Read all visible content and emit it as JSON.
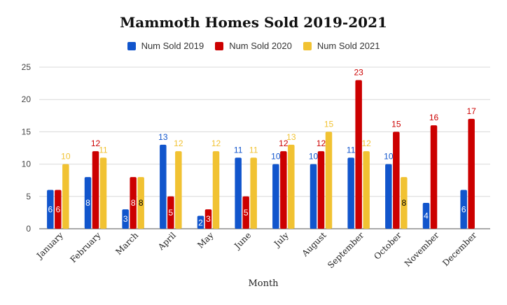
{
  "chart_data": {
    "type": "bar",
    "title": "Mammoth Homes Sold 2019-2021",
    "xlabel": "Month",
    "ylabel": "",
    "ylim": [
      0,
      25
    ],
    "yticks": [
      0,
      5,
      10,
      15,
      20,
      25
    ],
    "grid": true,
    "legend_position": "top",
    "categories": [
      "January",
      "February",
      "March",
      "April",
      "May",
      "June",
      "July",
      "August",
      "September",
      "October",
      "November",
      "December"
    ],
    "series": [
      {
        "name": "Num Sold 2019",
        "color": "#1155cc",
        "values": [
          6,
          8,
          3,
          13,
          2,
          11,
          10,
          10,
          11,
          10,
          4,
          6
        ]
      },
      {
        "name": "Num Sold 2020",
        "color": "#cc0000",
        "values": [
          6,
          12,
          8,
          5,
          3,
          5,
          12,
          12,
          23,
          15,
          16,
          17
        ]
      },
      {
        "name": "Num Sold 2021",
        "color": "#f1c232",
        "values": [
          10,
          11,
          8,
          12,
          12,
          11,
          13,
          15,
          12,
          8,
          null,
          null
        ]
      }
    ]
  }
}
